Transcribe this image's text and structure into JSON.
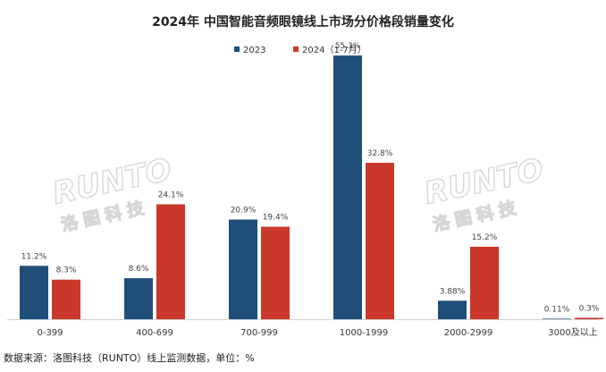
{
  "chart_data": {
    "type": "bar",
    "title": "2024年 中国智能音频眼镜线上市场分价格段销量变化",
    "categories": [
      "0-399",
      "400-699",
      "700-999",
      "1000-1999",
      "2000-2999",
      "3000及以上"
    ],
    "series": [
      {
        "name": "2023",
        "color": "#1f4e79",
        "values": [
          11.2,
          8.6,
          20.9,
          55.3,
          3.88,
          0.11
        ],
        "labels": [
          "11.2%",
          "8.6%",
          "20.9%",
          "55.3%",
          "3.88%",
          "0.11%"
        ]
      },
      {
        "name": "2024（1-7月）",
        "color": "#c9382b",
        "values": [
          8.3,
          24.1,
          19.4,
          32.8,
          15.2,
          0.3
        ],
        "labels": [
          "8.3%",
          "24.1%",
          "19.4%",
          "32.8%",
          "15.2%",
          "0.3%"
        ]
      }
    ],
    "ylim": [
      0,
      60
    ],
    "grid": false,
    "legend_position": "top-center",
    "watermark": {
      "brand": "RUNTO",
      "cn": "洛图科技"
    },
    "source": "数据来源：洛图科技（RUNTO）线上监测数据，单位：%"
  }
}
